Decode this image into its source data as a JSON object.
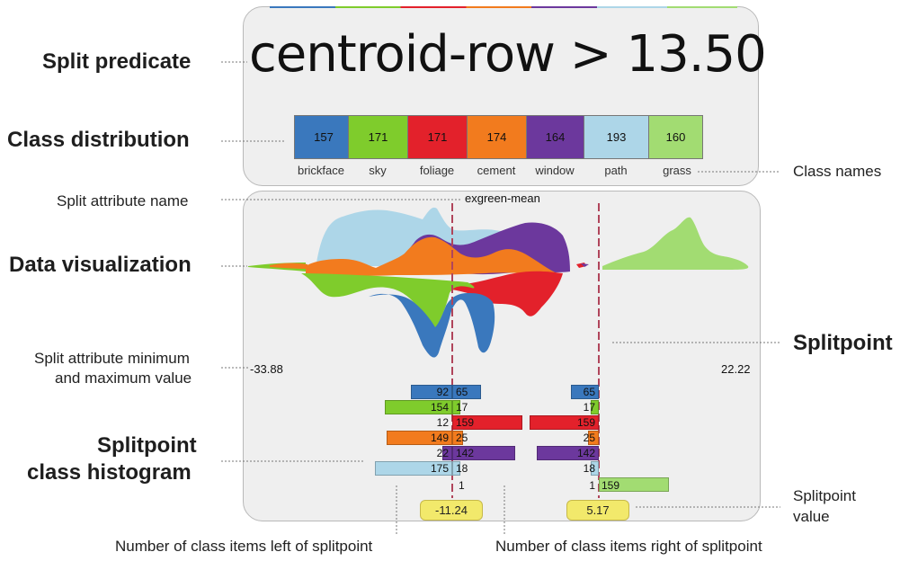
{
  "labels": {
    "split_predicate": "Split predicate",
    "class_distribution": "Class distribution",
    "split_attribute_name": "Split attribute name",
    "data_visualization": "Data visualization",
    "min_max_line1": "Split attribute minimum",
    "min_max_line2": "and maximum value",
    "splitpoint_hist_line1": "Splitpoint",
    "splitpoint_hist_line2": "class histogram",
    "class_names": "Class names",
    "splitpoint": "Splitpoint",
    "splitpoint_value_line1": "Splitpoint",
    "splitpoint_value_line2": "value",
    "left_items": "Number of class items left of splitpoint",
    "right_items": "Number of class items right of splitpoint"
  },
  "predicate": "centroid-row > 13.50",
  "attribute_name": "exgreen-mean",
  "min_value": "-33.88",
  "max_value": "22.22",
  "classes": [
    {
      "name": "brickface",
      "count": "157",
      "color": "#3a78bd"
    },
    {
      "name": "sky",
      "count": "171",
      "color": "#7fcc2c"
    },
    {
      "name": "foliage",
      "count": "171",
      "color": "#e3212b"
    },
    {
      "name": "cement",
      "count": "174",
      "color": "#f27b1e"
    },
    {
      "name": "window",
      "count": "164",
      "color": "#6c389d"
    },
    {
      "name": "path",
      "count": "193",
      "color": "#add6e8"
    },
    {
      "name": "grass",
      "count": "160",
      "color": "#a2dc72"
    }
  ],
  "splitpoint_values": [
    "-11.24",
    "5.17"
  ],
  "histogram_left": [
    {
      "left": "92",
      "right": "65"
    },
    {
      "left": "154",
      "right": "17"
    },
    {
      "left": "12",
      "right": "159"
    },
    {
      "left": "149",
      "right": "25"
    },
    {
      "left": "22",
      "right": "142"
    },
    {
      "left": "175",
      "right": "18"
    },
    {
      "left": "",
      "right": "1"
    }
  ],
  "histogram_right": [
    {
      "left": "65",
      "right": ""
    },
    {
      "left": "17",
      "right": ""
    },
    {
      "left": "159",
      "right": ""
    },
    {
      "left": "25",
      "right": ""
    },
    {
      "left": "142",
      "right": ""
    },
    {
      "left": "18",
      "right": ""
    },
    {
      "left": "1",
      "right": "159"
    }
  ]
}
